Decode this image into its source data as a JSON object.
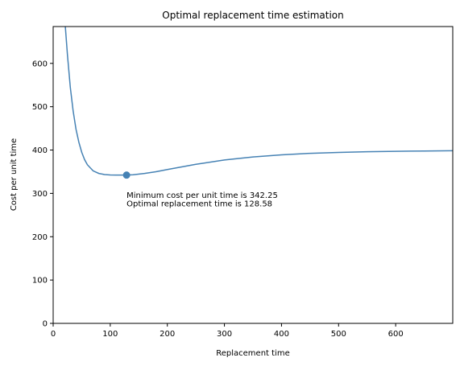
{
  "chart_data": {
    "type": "line",
    "title": "Optimal replacement time estimation",
    "xlabel": "Replacement time",
    "ylabel": "Cost per unit time",
    "xlim": [
      0,
      700
    ],
    "ylim": [
      0,
      685
    ],
    "xticks": [
      0,
      100,
      200,
      300,
      400,
      500,
      600
    ],
    "yticks": [
      0,
      100,
      200,
      300,
      400,
      500,
      600
    ],
    "grid": false,
    "series": [
      {
        "color": "#4682b4",
        "x": [
          21,
          25,
          30,
          35,
          40,
          45,
          50,
          55,
          60,
          70,
          80,
          90,
          100,
          110,
          120,
          128.58,
          140,
          160,
          180,
          200,
          250,
          300,
          350,
          400,
          450,
          500,
          550,
          600,
          650,
          700
        ],
        "y": [
          690,
          620,
          545,
          490,
          448,
          418,
          395,
          378,
          366,
          352,
          346,
          343.5,
          342.6,
          342.3,
          342.25,
          342.25,
          343,
          346,
          350,
          355,
          367,
          377,
          384,
          389,
          392.5,
          394.5,
          396,
          397,
          397.8,
          398.5
        ]
      }
    ],
    "marker": {
      "x": 128.58,
      "y": 342.25,
      "color": "#4682b4"
    },
    "annotations": [
      {
        "x": 128.58,
        "y": 290,
        "text": "Minimum cost per unit time is 342.25"
      },
      {
        "x": 128.58,
        "y": 270,
        "text": "Optimal replacement time is 128.58"
      }
    ]
  }
}
